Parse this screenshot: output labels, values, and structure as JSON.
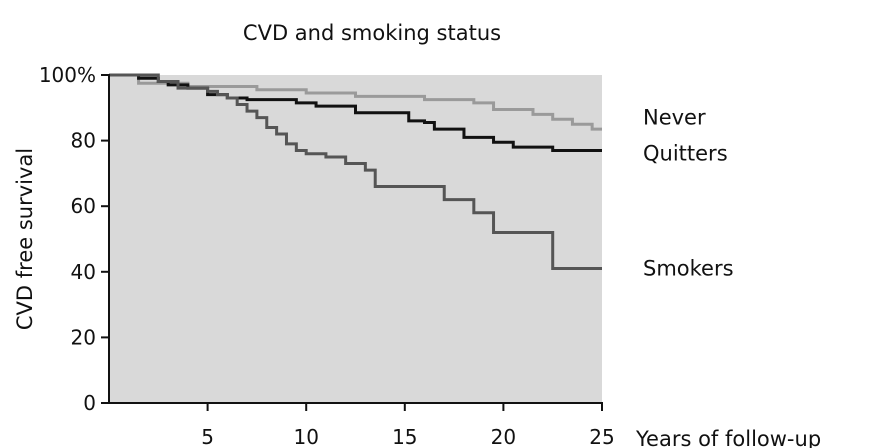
{
  "chart_data": {
    "type": "line",
    "step": true,
    "title": "CVD and smoking status",
    "xlabel": "Years of follow-up",
    "ylabel": "CVD free survival",
    "xlim": [
      0,
      25
    ],
    "ylim": [
      0,
      100
    ],
    "x_ticks": [
      5,
      10,
      15,
      20,
      25
    ],
    "y_ticks": [
      0,
      20,
      40,
      60,
      80,
      100
    ],
    "y_tick_labels": [
      "0",
      "20",
      "40",
      "60",
      "80",
      "100%"
    ],
    "background": "#d9d9d9",
    "legend_position": "right",
    "series": [
      {
        "name": "Never",
        "color": "#9a9a9a",
        "points": [
          [
            0,
            100
          ],
          [
            1.5,
            97.5
          ],
          [
            3.5,
            97.5
          ],
          [
            4,
            96.5
          ],
          [
            7,
            96.5
          ],
          [
            7.5,
            95.5
          ],
          [
            9.5,
            95.5
          ],
          [
            10,
            94.5
          ],
          [
            12,
            94.5
          ],
          [
            12.5,
            93.5
          ],
          [
            15,
            93.5
          ],
          [
            16,
            92.5
          ],
          [
            18,
            92.5
          ],
          [
            18.5,
            91.5
          ],
          [
            19,
            91.5
          ],
          [
            19.5,
            89.5
          ],
          [
            21,
            89.5
          ],
          [
            21.5,
            88
          ],
          [
            22,
            88
          ],
          [
            22.5,
            86.5
          ],
          [
            23,
            86.5
          ],
          [
            23.5,
            85
          ],
          [
            24,
            85
          ],
          [
            24.5,
            83.5
          ],
          [
            25,
            83.5
          ]
        ]
      },
      {
        "name": "Quitters",
        "color": "#111111",
        "points": [
          [
            0,
            100
          ],
          [
            1.5,
            99
          ],
          [
            2.5,
            98
          ],
          [
            3,
            97
          ],
          [
            4,
            96
          ],
          [
            5,
            94
          ],
          [
            6,
            93
          ],
          [
            7,
            92.5
          ],
          [
            9,
            92.5
          ],
          [
            9.5,
            91.5
          ],
          [
            10,
            91.5
          ],
          [
            10.5,
            90.5
          ],
          [
            12,
            90.5
          ],
          [
            12.5,
            88.5
          ],
          [
            15,
            88.5
          ],
          [
            15.2,
            86
          ],
          [
            16,
            85.5
          ],
          [
            16.5,
            83.5
          ],
          [
            17.5,
            83.5
          ],
          [
            18,
            81
          ],
          [
            19,
            81
          ],
          [
            19.5,
            79.5
          ],
          [
            20,
            79.5
          ],
          [
            20.5,
            78
          ],
          [
            22,
            78
          ],
          [
            22.5,
            77
          ],
          [
            25,
            77
          ]
        ]
      },
      {
        "name": "Smokers",
        "color": "#555555",
        "points": [
          [
            0,
            100
          ],
          [
            1.5,
            100
          ],
          [
            2.5,
            98
          ],
          [
            3.5,
            96
          ],
          [
            5,
            95
          ],
          [
            5.5,
            94
          ],
          [
            6,
            93
          ],
          [
            6.5,
            91
          ],
          [
            7,
            89
          ],
          [
            7.5,
            87
          ],
          [
            8,
            84
          ],
          [
            8.5,
            82
          ],
          [
            9,
            79
          ],
          [
            9.5,
            77
          ],
          [
            10,
            76
          ],
          [
            10.5,
            76
          ],
          [
            11,
            75
          ],
          [
            12,
            73
          ],
          [
            12.5,
            73
          ],
          [
            13,
            71
          ],
          [
            13.5,
            66
          ],
          [
            16.5,
            66
          ],
          [
            17,
            62
          ],
          [
            18,
            62
          ],
          [
            18.5,
            58
          ],
          [
            19,
            58
          ],
          [
            19.5,
            52
          ],
          [
            22,
            52
          ],
          [
            22.5,
            41
          ],
          [
            25,
            41
          ]
        ]
      }
    ],
    "legend": [
      {
        "label": "Never",
        "y": 87
      },
      {
        "label": "Quitters",
        "y": 76
      },
      {
        "label": "Smokers",
        "y": 41
      }
    ]
  }
}
